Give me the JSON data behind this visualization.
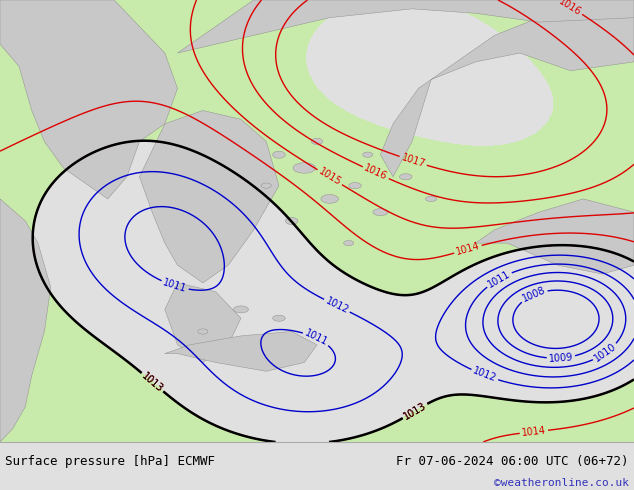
{
  "title_left": "Surface pressure [hPa] ECMWF",
  "title_right": "Fr 07-06-2024 06:00 UTC (06+72)",
  "watermark": "©weatheronline.co.uk",
  "bg_color": "#e0e0e0",
  "map_bg_color": "#c8eaaa",
  "sea_fill_color": "#c8eaaa",
  "land_color": "#c8c8c8",
  "land_edge_color": "#909090",
  "bottom_bar_color": "#d0d0d0",
  "bottom_bar_height": 48,
  "fig_width": 6.34,
  "fig_height": 4.9,
  "dpi": 100,
  "title_fontsize": 9,
  "watermark_fontsize": 8,
  "watermark_color": "#3333bb",
  "red_levels": [
    1013,
    1014,
    1015,
    1016,
    1017
  ],
  "black_levels": [
    1013
  ],
  "blue_levels": [
    1008,
    1009,
    1010,
    1011,
    1012
  ],
  "red_color": "#dd0000",
  "black_color": "#000000",
  "blue_color": "#0000cc",
  "red_lw": 1.0,
  "black_lw": 1.8,
  "blue_lw": 1.0,
  "label_fontsize": 7
}
